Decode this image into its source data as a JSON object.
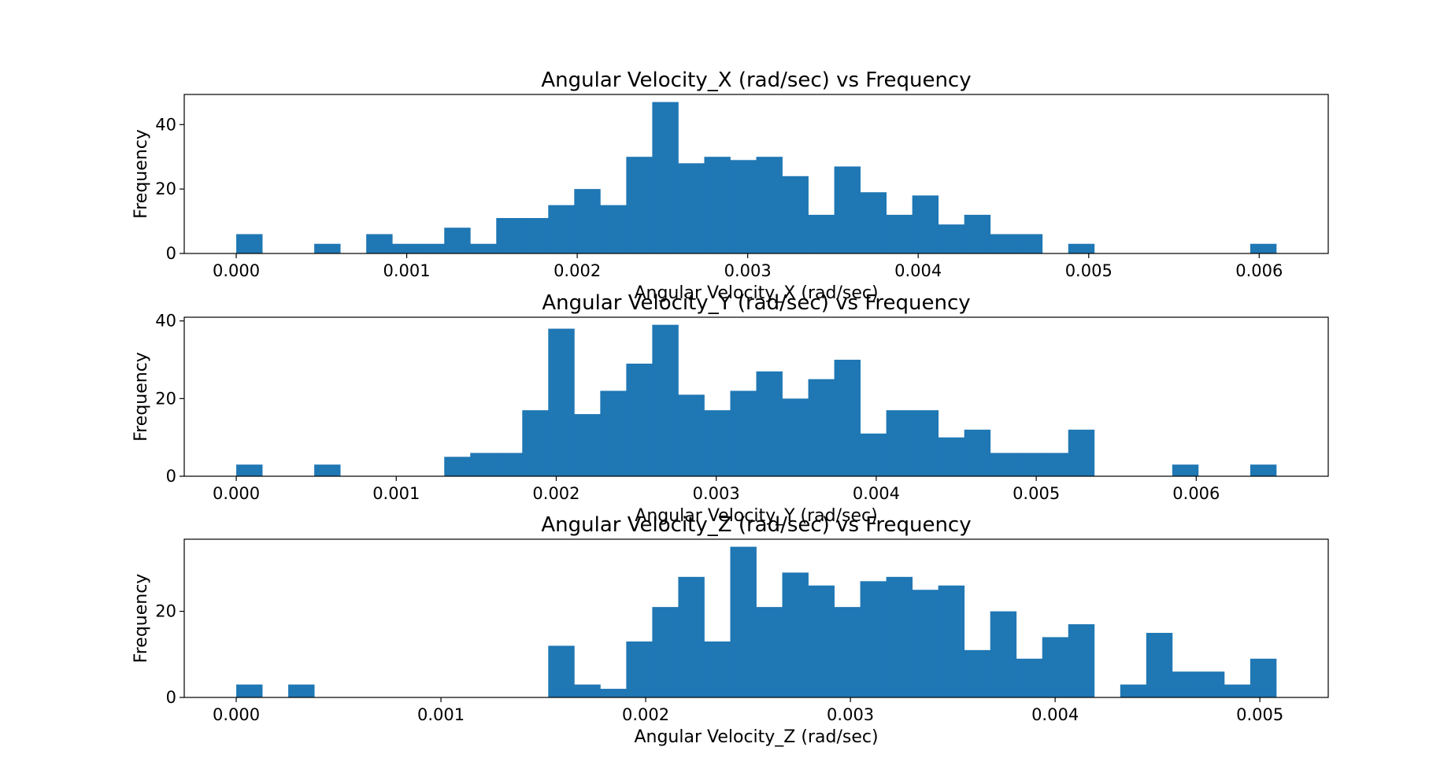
{
  "chart_data": [
    {
      "type": "bar",
      "title": "Angular Velocity_X (rad/sec) vs Frequency",
      "xlabel": "Angular Velocity_X (rad/sec)",
      "ylabel": "Frequency",
      "color": "#1f77b4",
      "xlim": [
        -0.000305,
        0.006405
      ],
      "ylim": [
        0,
        49.35
      ],
      "xticks": [
        0.0,
        0.001,
        0.002,
        0.003,
        0.004,
        0.005,
        0.006
      ],
      "xtick_labels": [
        "0.000",
        "0.001",
        "0.002",
        "0.003",
        "0.004",
        "0.005",
        "0.006"
      ],
      "yticks": [
        0,
        20,
        40
      ],
      "ytick_labels": [
        "0",
        "20",
        "40"
      ],
      "bin_start": 0.0,
      "bin_width": 0.0001525,
      "values": [
        6,
        0,
        0,
        3,
        0,
        6,
        3,
        3,
        8,
        3,
        11,
        11,
        15,
        20,
        15,
        30,
        47,
        28,
        30,
        29,
        30,
        24,
        12,
        27,
        19,
        12,
        18,
        9,
        12,
        6,
        6,
        0,
        3,
        0,
        0,
        0,
        0,
        0,
        0,
        3
      ]
    },
    {
      "type": "bar",
      "title": "Angular Velocity_Y (rad/sec) vs Frequency",
      "xlabel": "Angular Velocity_Y (rad/sec)",
      "ylabel": "Frequency",
      "color": "#1f77b4",
      "xlim": [
        -0.000325,
        0.006825
      ],
      "ylim": [
        0,
        40.95
      ],
      "xticks": [
        0.0,
        0.001,
        0.002,
        0.003,
        0.004,
        0.005,
        0.006
      ],
      "xtick_labels": [
        "0.000",
        "0.001",
        "0.002",
        "0.003",
        "0.004",
        "0.005",
        "0.006"
      ],
      "yticks": [
        0,
        20,
        40
      ],
      "ytick_labels": [
        "0",
        "20",
        "40"
      ],
      "bin_start": 0.0,
      "bin_width": 0.0001625,
      "values": [
        3,
        0,
        0,
        3,
        0,
        0,
        0,
        0,
        5,
        6,
        6,
        17,
        38,
        16,
        22,
        29,
        39,
        21,
        17,
        22,
        27,
        20,
        25,
        30,
        11,
        17,
        17,
        10,
        12,
        6,
        6,
        6,
        12,
        0,
        0,
        0,
        3,
        0,
        0,
        3
      ]
    },
    {
      "type": "bar",
      "title": "Angular Velocity_Z (rad/sec) vs Frequency",
      "xlabel": "Angular Velocity_Z (rad/sec)",
      "ylabel": "Frequency",
      "color": "#1f77b4",
      "xlim": [
        -0.000254,
        0.005334
      ],
      "ylim": [
        0,
        36.75
      ],
      "xticks": [
        0.0,
        0.001,
        0.002,
        0.003,
        0.004,
        0.005
      ],
      "xtick_labels": [
        "0.000",
        "0.001",
        "0.002",
        "0.003",
        "0.004",
        "0.005"
      ],
      "yticks": [
        0,
        20
      ],
      "ytick_labels": [
        "0",
        "20"
      ],
      "bin_start": 0.0,
      "bin_width": 0.000127,
      "values": [
        3,
        0,
        3,
        0,
        0,
        0,
        0,
        0,
        0,
        0,
        0,
        0,
        12,
        3,
        2,
        13,
        21,
        28,
        13,
        35,
        21,
        29,
        26,
        21,
        27,
        28,
        25,
        26,
        11,
        20,
        9,
        14,
        17,
        0,
        3,
        15,
        6,
        6,
        3,
        9
      ]
    }
  ]
}
